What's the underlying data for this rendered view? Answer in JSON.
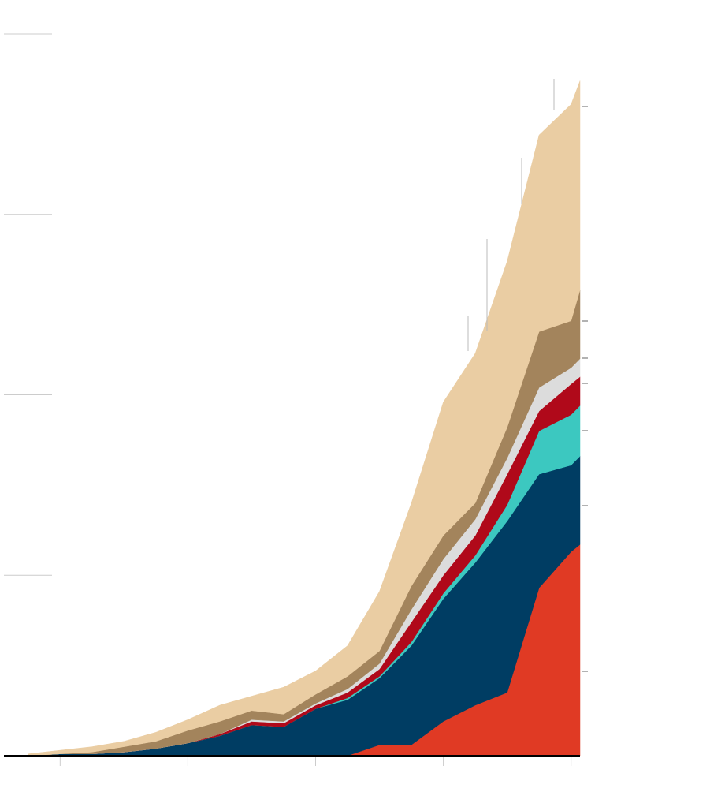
{
  "chart_data": {
    "type": "area",
    "stacked": true,
    "x": [
      0.75,
      1,
      1.25,
      1.5,
      1.75,
      2,
      2.25,
      2.5,
      2.75,
      3,
      3.25,
      3.5,
      3.75,
      4,
      4.25,
      4.5,
      4.75,
      5,
      5.07
    ],
    "xlim": [
      0.56,
      5.07
    ],
    "xticks": [
      1,
      2,
      3,
      4,
      5
    ],
    "ylim": [
      0,
      4
    ],
    "yticks": [
      1,
      2,
      3,
      4
    ],
    "series": [
      {
        "color": "#e03a24",
        "values": [
          0,
          0,
          0,
          0,
          0,
          0,
          0,
          0,
          0,
          0,
          0,
          0.06,
          0.06,
          0.19,
          0.28,
          0.35,
          0.93,
          1.13,
          1.17
        ]
      },
      {
        "color": "#003d63",
        "values": [
          0,
          0.01,
          0.01,
          0.02,
          0.04,
          0.07,
          0.11,
          0.17,
          0.16,
          0.26,
          0.31,
          0.37,
          0.55,
          0.68,
          0.79,
          0.95,
          0.63,
          0.48,
          0.49
        ]
      },
      {
        "color": "#3cc8c0",
        "values": [
          0,
          0,
          0,
          0,
          0,
          0,
          0,
          0,
          0,
          0,
          0.01,
          0.01,
          0.02,
          0.03,
          0.04,
          0.09,
          0.24,
          0.28,
          0.28
        ]
      },
      {
        "color": "#b0091a",
        "values": [
          0,
          0,
          0,
          0,
          0,
          0,
          0.01,
          0.02,
          0.02,
          0.02,
          0.03,
          0.04,
          0.11,
          0.1,
          0.11,
          0.17,
          0.11,
          0.17,
          0.16
        ]
      },
      {
        "color": "#dcdcdc",
        "values": [
          0,
          0,
          0,
          0,
          0,
          0,
          0,
          0.01,
          0.01,
          0.01,
          0.02,
          0.03,
          0.07,
          0.09,
          0.09,
          0.09,
          0.13,
          0.09,
          0.1
        ]
      },
      {
        "color": "#a3845c",
        "values": [
          0,
          0,
          0.01,
          0.03,
          0.04,
          0.07,
          0.07,
          0.05,
          0.04,
          0.05,
          0.07,
          0.07,
          0.13,
          0.13,
          0.09,
          0.17,
          0.31,
          0.26,
          0.38
        ]
      },
      {
        "color": "#eacda3",
        "values": [
          0.01,
          0.02,
          0.03,
          0.03,
          0.05,
          0.06,
          0.09,
          0.08,
          0.15,
          0.13,
          0.17,
          0.33,
          0.46,
          0.74,
          0.83,
          0.92,
          1.09,
          1.2,
          1.16
        ]
      }
    ]
  }
}
